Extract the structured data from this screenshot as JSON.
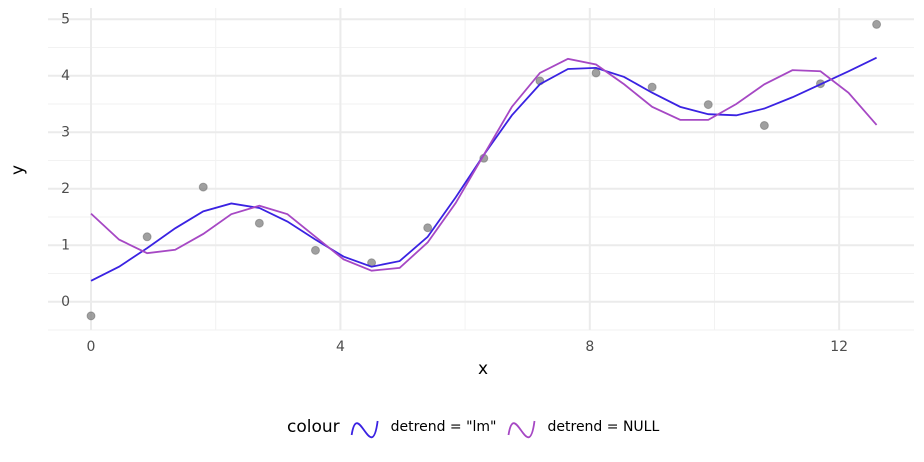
{
  "chart_data": {
    "type": "line",
    "x_label": "x",
    "y_label": "y",
    "xlim": [
      -0.69,
      13.2
    ],
    "xticks": [
      0,
      4,
      8,
      12
    ],
    "ylim": [
      -0.5,
      5.2
    ],
    "yticks": [
      0,
      1,
      2,
      3,
      4,
      5
    ],
    "grid": true,
    "legend": "bottom",
    "legend_title": "colour",
    "x": [
      0,
      0.45,
      0.9,
      1.35,
      1.8,
      2.25,
      2.7,
      3.15,
      3.6,
      4.05,
      4.5,
      4.95,
      5.4,
      5.85,
      6.3,
      6.75,
      7.2,
      7.65,
      8.1,
      8.55,
      9.0,
      9.45,
      9.9,
      10.35,
      10.8,
      11.25,
      11.7,
      12.15,
      12.6
    ],
    "series": [
      {
        "name": "detrend = \"lm\"",
        "color": "#3a22e2",
        "values": [
          0.37,
          0.62,
          0.95,
          1.3,
          1.6,
          1.74,
          1.66,
          1.42,
          1.1,
          0.8,
          0.62,
          0.72,
          1.15,
          1.85,
          2.6,
          3.3,
          3.85,
          4.12,
          4.14,
          3.98,
          3.7,
          3.45,
          3.32,
          3.3,
          3.42,
          3.62,
          3.85,
          4.08,
          4.32
        ]
      },
      {
        "name": "detrend = NULL",
        "color": "#a648c4",
        "values": [
          1.56,
          1.1,
          0.86,
          0.92,
          1.2,
          1.55,
          1.7,
          1.55,
          1.15,
          0.75,
          0.55,
          0.6,
          1.05,
          1.75,
          2.6,
          3.45,
          4.05,
          4.3,
          4.2,
          3.85,
          3.45,
          3.22,
          3.22,
          3.5,
          3.85,
          4.1,
          4.08,
          3.7,
          3.13
        ]
      }
    ],
    "points": {
      "color": "#808080",
      "x": [
        0,
        0.9,
        1.8,
        2.7,
        3.6,
        4.5,
        5.4,
        6.3,
        7.2,
        8.1,
        9.0,
        9.9,
        10.8,
        11.7,
        12.6
      ],
      "values": [
        -0.25,
        1.15,
        2.03,
        1.39,
        0.91,
        0.69,
        1.31,
        2.54,
        3.91,
        4.05,
        3.8,
        3.49,
        3.12,
        3.86,
        4.91
      ]
    }
  }
}
